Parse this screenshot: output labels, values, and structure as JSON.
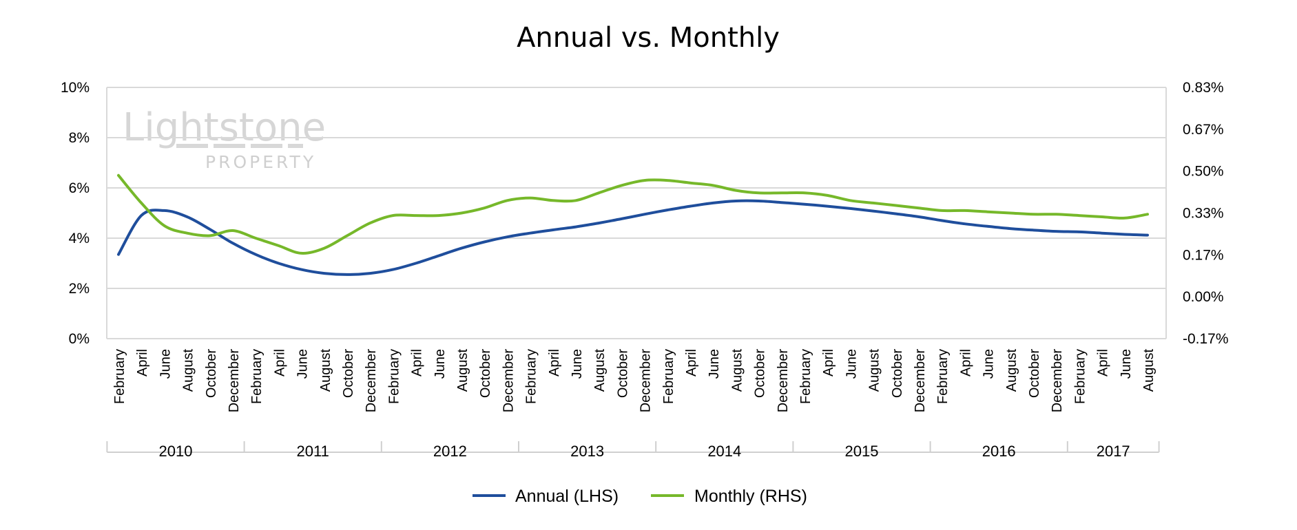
{
  "chart_data": {
    "type": "line",
    "title": "Annual vs. Monthly",
    "x_months": [
      "February",
      "April",
      "June",
      "August",
      "October",
      "December",
      "February",
      "April",
      "June",
      "August",
      "October",
      "December",
      "February",
      "April",
      "June",
      "August",
      "October",
      "December",
      "February",
      "April",
      "June",
      "August",
      "October",
      "December",
      "February",
      "April",
      "June",
      "August",
      "October",
      "December",
      "February",
      "April",
      "June",
      "August",
      "October",
      "December",
      "February",
      "April",
      "June",
      "August",
      "October",
      "December",
      "February",
      "April",
      "June",
      "August"
    ],
    "x_years": [
      "2010",
      "2011",
      "2012",
      "2013",
      "2014",
      "2015",
      "2016",
      "2017"
    ],
    "year_month_counts": [
      6,
      6,
      6,
      6,
      6,
      6,
      6,
      4
    ],
    "y_left": {
      "min": 0,
      "max": 10,
      "ticks": [
        "0%",
        "2%",
        "4%",
        "6%",
        "8%",
        "10%"
      ]
    },
    "y_right": {
      "min": -0.17,
      "max": 0.83,
      "ticks": [
        "-0.17%",
        "0.00%",
        "0.17%",
        "0.33%",
        "0.50%",
        "0.67%",
        "0.83%"
      ]
    },
    "grid": true,
    "legend_position": "bottom",
    "series": [
      {
        "name": "Annual (LHS)",
        "axis": "left",
        "color": "#1f4e9c",
        "values": [
          3.35,
          4.9,
          5.1,
          4.85,
          4.35,
          3.8,
          3.35,
          3.0,
          2.75,
          2.6,
          2.55,
          2.6,
          2.75,
          3.0,
          3.3,
          3.6,
          3.85,
          4.05,
          4.2,
          4.33,
          4.45,
          4.6,
          4.77,
          4.95,
          5.12,
          5.27,
          5.4,
          5.48,
          5.48,
          5.42,
          5.35,
          5.27,
          5.18,
          5.08,
          4.97,
          4.85,
          4.7,
          4.57,
          4.47,
          4.38,
          4.32,
          4.27,
          4.25,
          4.2,
          4.15,
          4.12
        ]
      },
      {
        "name": "Monthly (RHS)",
        "axis": "right",
        "color": "#76b82a",
        "values": [
          0.48,
          0.37,
          0.28,
          0.25,
          0.24,
          0.26,
          0.23,
          0.2,
          0.17,
          0.19,
          0.24,
          0.29,
          0.32,
          0.32,
          0.32,
          0.33,
          0.35,
          0.38,
          0.39,
          0.38,
          0.38,
          0.41,
          0.44,
          0.46,
          0.46,
          0.45,
          0.44,
          0.42,
          0.41,
          0.41,
          0.41,
          0.4,
          0.38,
          0.37,
          0.36,
          0.35,
          0.34,
          0.34,
          0.335,
          0.33,
          0.325,
          0.325,
          0.32,
          0.315,
          0.31,
          0.325
        ]
      }
    ]
  },
  "watermark": {
    "main": "Lightstone",
    "sub": "PROPERTY"
  }
}
